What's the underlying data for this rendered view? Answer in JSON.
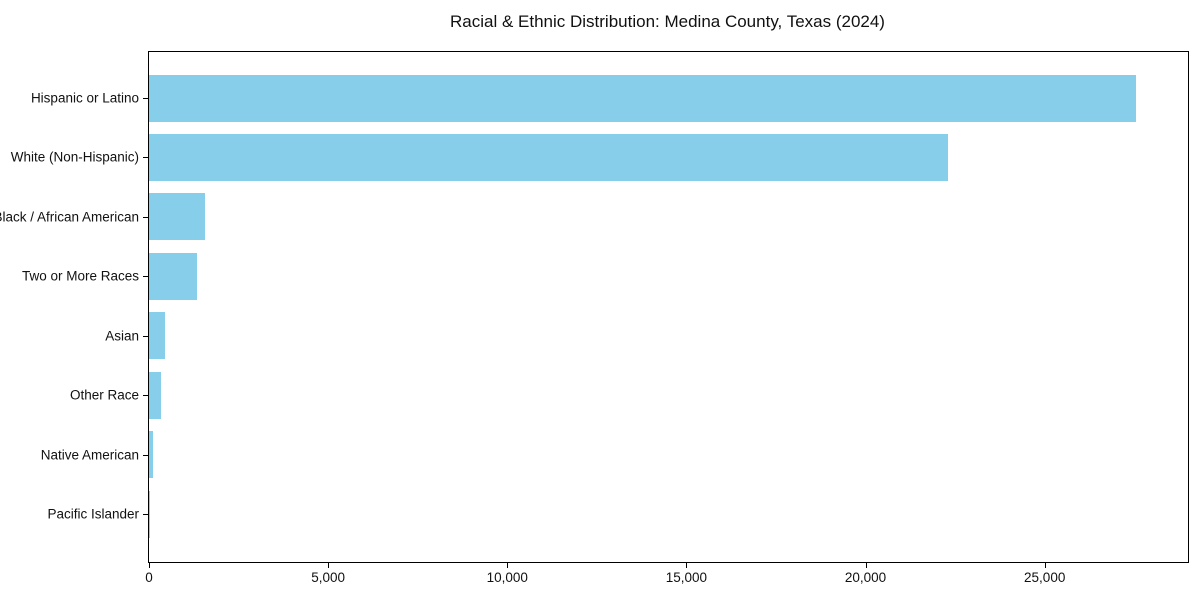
{
  "chart_data": {
    "type": "bar",
    "orientation": "horizontal",
    "title": "Racial & Ethnic Distribution: Medina County, Texas (2024)",
    "categories": [
      "Hispanic or Latino",
      "White (Non-Hispanic)",
      "Black / African American",
      "Two or More Races",
      "Asian",
      "Other Race",
      "Native American",
      "Pacific Islander"
    ],
    "values": [
      27550,
      22300,
      1550,
      1330,
      460,
      330,
      110,
      30
    ],
    "bar_color": "#87CEEB",
    "xlabel": "",
    "ylabel": "",
    "xlim": [
      0,
      29000
    ],
    "x_ticks": [
      0,
      5000,
      10000,
      15000,
      20000,
      25000
    ],
    "x_tick_labels": [
      "0",
      "5,000",
      "10,000",
      "15,000",
      "20,000",
      "25,000"
    ],
    "grid": false,
    "legend": false,
    "frame": "full-box"
  }
}
